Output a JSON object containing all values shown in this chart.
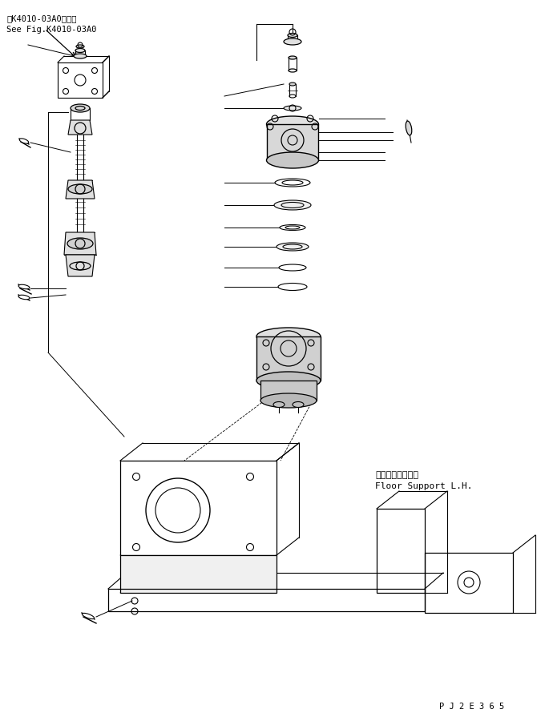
{
  "title_jp": "第K4010-03A0図参照",
  "title_en": "See Fig.K4010-03A0",
  "label_jp": "フロアサポート左",
  "label_en": "Floor Support L.H.",
  "part_code": "P J 2 E 3 6 5",
  "bg_color": "#ffffff",
  "line_color": "#000000",
  "fig_width": 6.85,
  "fig_height": 9.0
}
